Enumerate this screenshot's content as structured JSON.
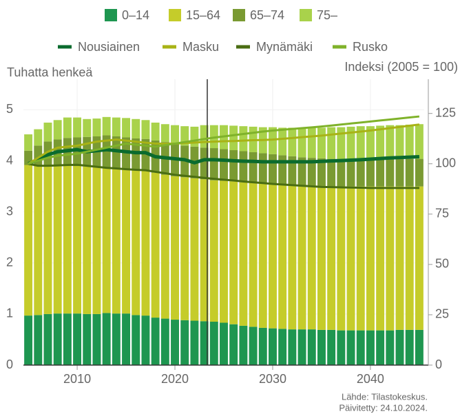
{
  "chart_data": {
    "type": "bar",
    "y_label": "Tuhatta henkeä",
    "y2_label": "Indeksi (2005 = 100)",
    "source": "Lähde: Tilastokeskus.",
    "updated": "Päivitetty: 24.10.2024.",
    "x": [
      2005,
      2006,
      2007,
      2008,
      2009,
      2010,
      2011,
      2012,
      2013,
      2014,
      2015,
      2016,
      2017,
      2018,
      2019,
      2020,
      2021,
      2022,
      2023,
      2024,
      2025,
      2026,
      2027,
      2028,
      2029,
      2030,
      2031,
      2032,
      2033,
      2034,
      2035,
      2036,
      2037,
      2038,
      2039,
      2040,
      2041,
      2042,
      2043,
      2044,
      2045
    ],
    "xlim": [
      2004.5,
      2045.5
    ],
    "xticks": [
      2010,
      2020,
      2030,
      2040
    ],
    "ylim": [
      0,
      5.6
    ],
    "yticks": [
      0,
      1,
      2,
      3,
      4,
      5
    ],
    "y2lim": [
      0,
      142
    ],
    "y2ticks": [
      0,
      25,
      50,
      75,
      100,
      125
    ],
    "grid": true,
    "series": [
      {
        "name": "0–14",
        "color": "#1e9650",
        "values": [
          0.97,
          0.98,
          1.0,
          1.01,
          1.01,
          1.01,
          1.0,
          1.0,
          1.02,
          1.01,
          1.01,
          0.98,
          0.97,
          0.93,
          0.91,
          0.89,
          0.88,
          0.87,
          0.86,
          0.85,
          0.83,
          0.8,
          0.77,
          0.75,
          0.73,
          0.72,
          0.71,
          0.7,
          0.7,
          0.7,
          0.69,
          0.69,
          0.68,
          0.68,
          0.68,
          0.68,
          0.68,
          0.68,
          0.69,
          0.69,
          0.69
        ]
      },
      {
        "name": "15–64",
        "color": "#c5cc2a",
        "values": [
          2.95,
          2.94,
          2.92,
          2.9,
          2.9,
          2.89,
          2.89,
          2.88,
          2.85,
          2.85,
          2.84,
          2.84,
          2.83,
          2.84,
          2.82,
          2.81,
          2.8,
          2.79,
          2.78,
          2.77,
          2.78,
          2.8,
          2.81,
          2.82,
          2.83,
          2.83,
          2.83,
          2.83,
          2.82,
          2.81,
          2.81,
          2.81,
          2.82,
          2.82,
          2.82,
          2.82,
          2.82,
          2.82,
          2.81,
          2.81,
          2.81
        ]
      },
      {
        "name": "65–74",
        "color": "#7a9a32",
        "values": [
          0.28,
          0.38,
          0.46,
          0.51,
          0.54,
          0.56,
          0.58,
          0.6,
          0.63,
          0.62,
          0.61,
          0.62,
          0.63,
          0.63,
          0.64,
          0.63,
          0.62,
          0.62,
          0.62,
          0.63,
          0.62,
          0.61,
          0.61,
          0.6,
          0.59,
          0.58,
          0.57,
          0.56,
          0.55,
          0.55,
          0.55,
          0.54,
          0.54,
          0.54,
          0.54,
          0.54,
          0.54,
          0.54,
          0.54,
          0.54,
          0.54
        ]
      },
      {
        "name": "75–",
        "color": "#a9d24b",
        "values": [
          0.32,
          0.32,
          0.37,
          0.38,
          0.4,
          0.39,
          0.35,
          0.35,
          0.36,
          0.37,
          0.38,
          0.38,
          0.37,
          0.35,
          0.35,
          0.37,
          0.38,
          0.39,
          0.44,
          0.45,
          0.47,
          0.48,
          0.49,
          0.5,
          0.51,
          0.53,
          0.54,
          0.56,
          0.58,
          0.59,
          0.6,
          0.62,
          0.62,
          0.63,
          0.64,
          0.64,
          0.65,
          0.66,
          0.66,
          0.67,
          0.68
        ]
      },
      {
        "name": "Nousiainen",
        "color": "#0a6b2e",
        "axis": "y2",
        "values": [
          100,
          102,
          104.5,
          106,
          106.5,
          107,
          106,
          106.5,
          107,
          106.5,
          106,
          105.5,
          105.5,
          103.5,
          103,
          102.5,
          102,
          100.5,
          102,
          102,
          101.8,
          101.5,
          101.3,
          101.2,
          101,
          101,
          101,
          101,
          101,
          101,
          101.2,
          101.4,
          101.6,
          101.8,
          102,
          102.3,
          102.6,
          102.9,
          103.1,
          103.3,
          103.5
        ]
      },
      {
        "name": "Masku",
        "color": "#a8b316",
        "axis": "y2",
        "values": [
          100,
          103,
          106,
          108,
          108.5,
          109,
          110,
          111,
          111.5,
          112,
          111.5,
          111,
          110.5,
          110,
          110,
          110,
          110.3,
          110.5,
          110.8,
          111,
          111.2,
          111.3,
          111.5,
          111.7,
          111.8,
          112,
          112.4,
          112.8,
          113.2,
          113.6,
          114,
          114.5,
          115,
          115.5,
          116,
          116.5,
          117.1,
          117.7,
          118.3,
          118.9,
          119.5
        ]
      },
      {
        "name": "Mynämäki",
        "color": "#4a6d12",
        "axis": "y2",
        "values": [
          100,
          99,
          99,
          99.2,
          99.4,
          99.5,
          99,
          98.5,
          98,
          97.7,
          97.3,
          97,
          96.8,
          96,
          95.3,
          94.5,
          94,
          93.5,
          93,
          92.5,
          92.1,
          91.7,
          91.2,
          90.8,
          90.4,
          90,
          89.7,
          89.4,
          89.1,
          88.8,
          88.5,
          88.4,
          88.3,
          88.2,
          88.1,
          88,
          88,
          88,
          88,
          88,
          88
        ]
      },
      {
        "name": "Rusko",
        "color": "#7fb22a",
        "axis": "y2",
        "values": [
          100,
          101.5,
          103,
          104,
          104.5,
          105,
          106,
          107,
          108,
          109,
          110,
          109.5,
          109,
          108.5,
          109.3,
          110,
          110.8,
          111.5,
          112.3,
          113,
          113.6,
          114.2,
          114.8,
          115.4,
          116,
          116.5,
          116.9,
          117.3,
          117.7,
          118.1,
          118.5,
          119,
          119.5,
          120,
          120.5,
          121,
          121.5,
          122,
          122.5,
          123,
          123.5
        ]
      }
    ]
  }
}
